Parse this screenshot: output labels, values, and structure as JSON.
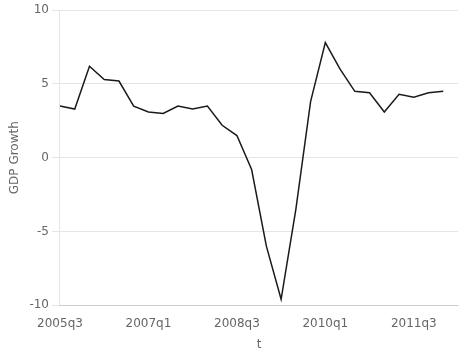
{
  "chart_data": {
    "type": "line",
    "xlabel": "t",
    "ylabel": "GDP Growth",
    "x": [
      2005.5,
      2005.75,
      2006.0,
      2006.25,
      2006.5,
      2006.75,
      2007.0,
      2007.25,
      2007.5,
      2007.75,
      2008.0,
      2008.25,
      2008.5,
      2008.75,
      2009.0,
      2009.25,
      2009.5,
      2009.75,
      2010.0,
      2010.25,
      2010.5,
      2010.75,
      2011.0,
      2011.25,
      2011.5,
      2011.75,
      2012.0
    ],
    "values": [
      3.5,
      3.3,
      6.2,
      5.3,
      5.2,
      3.5,
      3.1,
      3.0,
      3.5,
      3.3,
      3.5,
      2.2,
      1.5,
      -0.8,
      -6.0,
      -9.6,
      -3.5,
      3.8,
      7.8,
      6.0,
      4.5,
      4.4,
      3.1,
      4.3,
      4.1,
      4.4,
      4.5
    ],
    "color": "#1a1a1a",
    "xlim": [
      2005.5,
      2012.25
    ],
    "xticks": [
      {
        "value": 2005.5,
        "label": "2005q3"
      },
      {
        "value": 2007.0,
        "label": "2007q1"
      },
      {
        "value": 2008.5,
        "label": "2008q3"
      },
      {
        "value": 2010.0,
        "label": "2010q1"
      },
      {
        "value": 2011.5,
        "label": "2011q3"
      }
    ],
    "ylim": [
      -10,
      10
    ],
    "yticks": [
      -10,
      -5,
      0,
      5,
      10
    ],
    "grid": true
  }
}
